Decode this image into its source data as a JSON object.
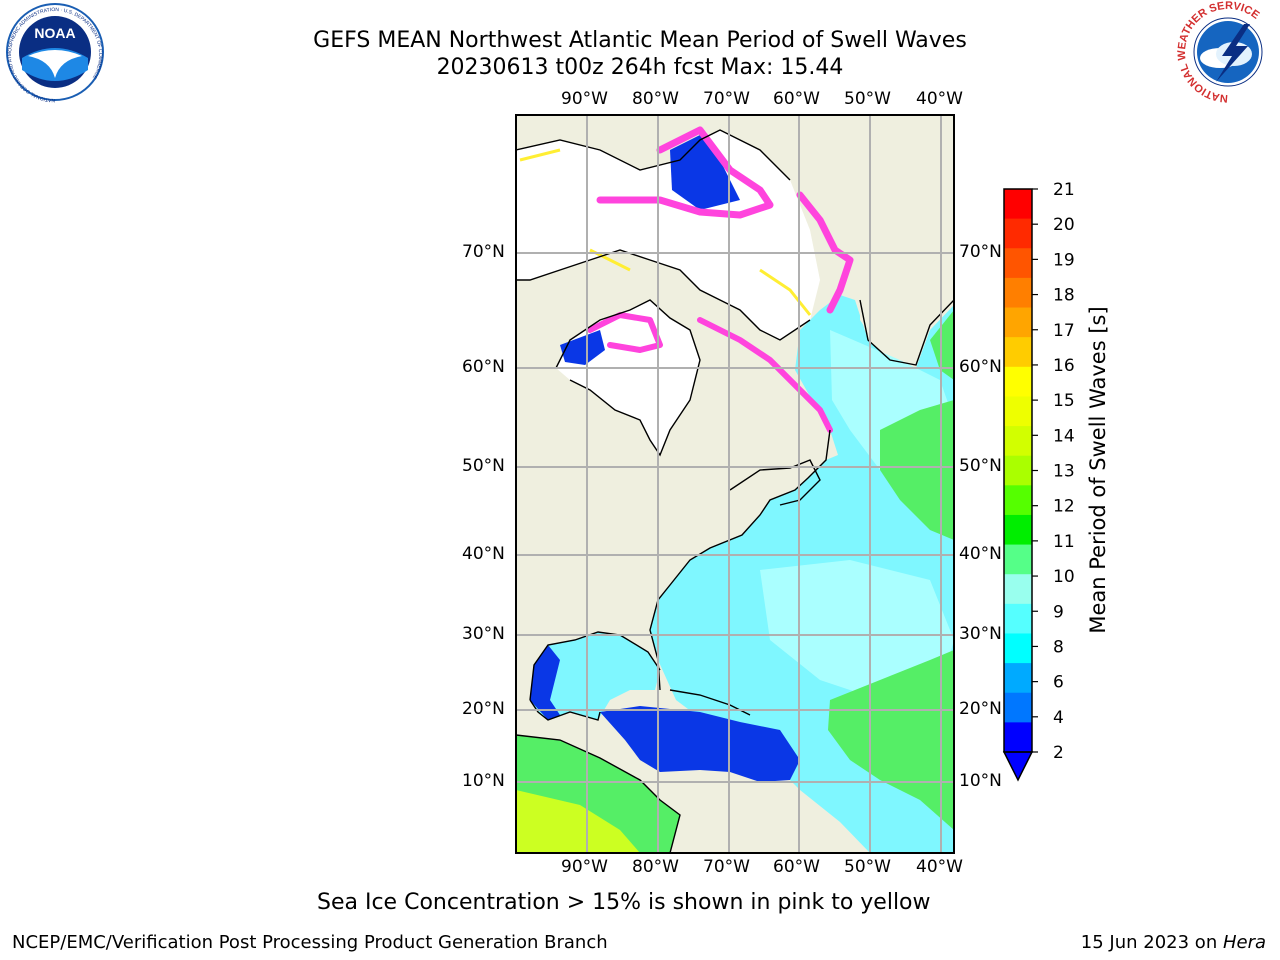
{
  "title": {
    "line1": "GEFS MEAN Northwest Atlantic Mean Period of Swell Waves",
    "line2": "20230613 t00z 264h fcst   Max: 15.44"
  },
  "axes": {
    "lon_ticks": [
      "90°W",
      "80°W",
      "70°W",
      "60°W",
      "50°W",
      "40°W"
    ],
    "lat_ticks": [
      "70°N",
      "60°N",
      "50°N",
      "40°N",
      "30°N",
      "20°N",
      "10°N"
    ]
  },
  "colorbar": {
    "label": "Mean Period of Swell Waves [s]",
    "ticks": [
      "21",
      "20",
      "19",
      "18",
      "17",
      "16",
      "15",
      "14",
      "13",
      "12",
      "11",
      "10",
      "9",
      "8",
      "6",
      "4",
      "2"
    ],
    "colors": [
      "#ff0000",
      "#ff2a00",
      "#ff5500",
      "#ff7f00",
      "#ffa500",
      "#ffcc00",
      "#ffff00",
      "#eeff00",
      "#d2ff00",
      "#aaff00",
      "#55ff00",
      "#00ee00",
      "#55ff88",
      "#99ffee",
      "#55ffff",
      "#00ffff",
      "#00aaff",
      "#0077ff",
      "#0000ff"
    ],
    "extend_color": "#0000ff"
  },
  "caption": "Sea Ice Concentration > 15% is shown in pink to yellow",
  "footer": {
    "left": "NCEP/EMC/Verification Post Processing Product Generation Branch",
    "right_prefix": "15 Jun 2023 on ",
    "right_host": "Hera"
  },
  "logos": {
    "noaa": "NOAA",
    "noaa_ring": "NATIONAL OCEANIC AND ATMOSPHERIC ADMINISTRATION · U.S. DEPARTMENT OF COMMERCE",
    "nws_ring": "NATIONAL WEATHER SERVICE"
  },
  "map_colors": {
    "land": "#efefdf",
    "ice_free_white": "#ffffff",
    "ocean_cyan": "#7ff7ff",
    "ocean_light": "#aaffff",
    "ocean_green": "#55ee66",
    "ocean_blue": "#0a37e6",
    "ice_pink": "#ff44dd",
    "ice_yellow": "#ffee33",
    "grid": "#b0b0b0"
  }
}
